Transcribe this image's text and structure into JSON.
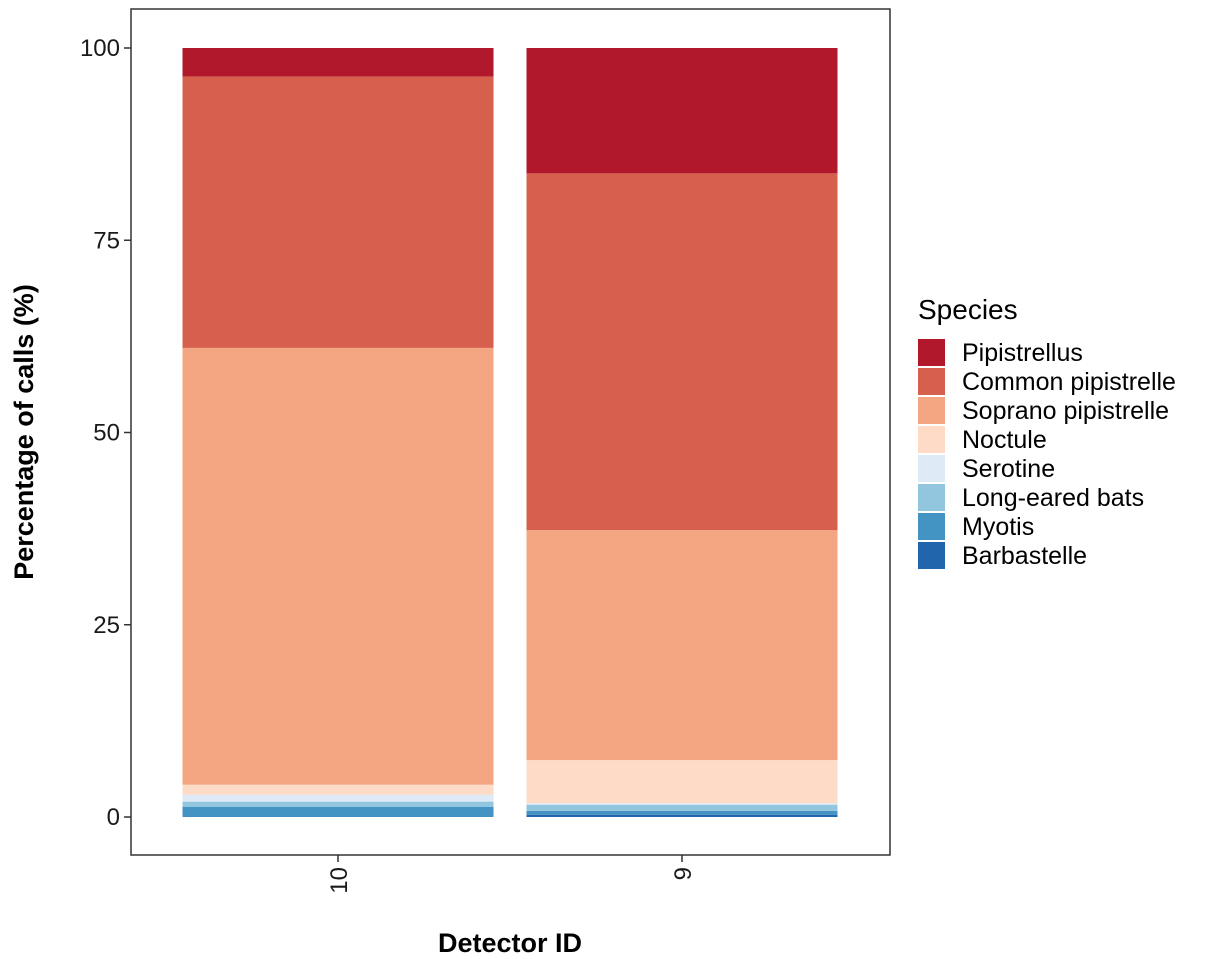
{
  "chart_data": {
    "type": "bar",
    "stacked": true,
    "xlabel": "Detector ID",
    "ylabel": "Percentage of calls (%)",
    "categories": [
      "10",
      "9"
    ],
    "ylim": [
      0,
      100
    ],
    "yticks": [
      0,
      25,
      50,
      75,
      100
    ],
    "legend_title": "Species",
    "legend_position": "right",
    "grid": false,
    "series": [
      {
        "name": "Pipistrellus",
        "color": "#b2182b",
        "values": [
          3.7,
          16.3
        ]
      },
      {
        "name": "Common pipistrelle",
        "color": "#d6604d",
        "values": [
          35.3,
          46.4
        ]
      },
      {
        "name": "Soprano pipistrelle",
        "color": "#f4a582",
        "values": [
          56.8,
          29.9
        ]
      },
      {
        "name": "Noctule",
        "color": "#fddbc7",
        "values": [
          1.3,
          5.6
        ]
      },
      {
        "name": "Serotine",
        "color": "#deebf7",
        "values": [
          0.9,
          0.2
        ]
      },
      {
        "name": "Long-eared bats",
        "color": "#92c5de",
        "values": [
          0.7,
          0.8
        ]
      },
      {
        "name": "Myotis",
        "color": "#4393c3",
        "values": [
          1.3,
          0.5
        ]
      },
      {
        "name": "Barbastelle",
        "color": "#2166ac",
        "values": [
          0.0,
          0.3
        ]
      }
    ]
  }
}
